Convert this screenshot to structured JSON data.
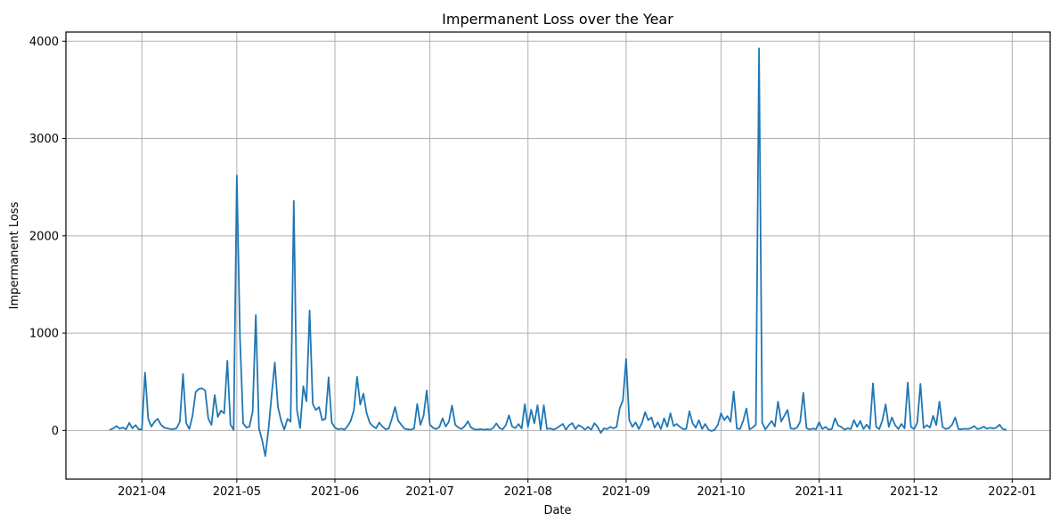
{
  "figure": {
    "title": "Impermanent Loss over the Year",
    "xlabel": "Date",
    "ylabel": "Impermanent Loss",
    "colors": {
      "line": "#1f77b4",
      "grid": "#b0b0b0",
      "spine": "#000000",
      "background": "#ffffff"
    }
  },
  "chart_data": {
    "type": "line",
    "title": "Impermanent Loss over the Year",
    "xlabel": "Date",
    "ylabel": "Impermanent Loss",
    "legend": null,
    "grid": true,
    "series_name": "Impermanent Loss",
    "freq": "daily",
    "start_date": "2021-03-22",
    "end_date": "2021-12-30",
    "x_tick_labels": [
      "2021-04",
      "2021-05",
      "2021-06",
      "2021-07",
      "2021-08",
      "2021-09",
      "2021-10",
      "2021-11",
      "2021-12",
      "2022-01"
    ],
    "x_tick_days": [
      24,
      54,
      85,
      115,
      146,
      177,
      207,
      238,
      268,
      299
    ],
    "xlim_days": 311,
    "data_start_day": 14,
    "y_ticks": [
      0,
      1000,
      2000,
      3000,
      4000
    ],
    "ylim": [
      -500,
      4094
    ],
    "values": [
      8,
      22,
      45,
      18,
      30,
      12,
      78,
      22,
      55,
      12,
      10,
      595,
      120,
      40,
      90,
      120,
      60,
      30,
      22,
      15,
      12,
      25,
      90,
      580,
      75,
      15,
      150,
      396,
      425,
      433,
      410,
      120,
      57,
      365,
      140,
      204,
      175,
      717,
      60,
      5,
      2620,
      950,
      75,
      30,
      40,
      195,
      1187,
      20,
      -100,
      -263,
      10,
      363,
      698,
      241,
      100,
      10,
      119,
      90,
      2361,
      210,
      25,
      455,
      300,
      1233,
      272,
      210,
      240,
      105,
      120,
      546,
      80,
      30,
      12,
      18,
      8,
      45,
      100,
      210,
      552,
      265,
      378,
      180,
      80,
      43,
      22,
      82,
      40,
      12,
      20,
      120,
      241,
      100,
      58,
      18,
      12,
      8,
      20,
      272,
      58,
      150,
      409,
      60,
      27,
      15,
      35,
      125,
      40,
      90,
      256,
      60,
      30,
      15,
      45,
      94,
      30,
      12,
      8,
      15,
      8,
      12,
      8,
      25,
      73,
      25,
      12,
      55,
      156,
      40,
      25,
      66,
      20,
      270,
      37,
      213,
      75,
      259,
      8,
      259,
      15,
      22,
      8,
      22,
      45,
      67,
      8,
      55,
      75,
      15,
      55,
      37,
      8,
      37,
      8,
      75,
      37,
      -25,
      22,
      15,
      37,
      22,
      37,
      230,
      310,
      735,
      106,
      37,
      84,
      15,
      75,
      189,
      106,
      134,
      28,
      84,
      15,
      125,
      37,
      177,
      46,
      67,
      37,
      15,
      15,
      198,
      75,
      28,
      106,
      15,
      67,
      8,
      -5,
      8,
      60,
      177,
      106,
      148,
      90,
      400,
      20,
      15,
      100,
      226,
      10,
      30,
      60,
      3927,
      80,
      10,
      56,
      97,
      40,
      296,
      92,
      150,
      211,
      22,
      15,
      30,
      90,
      387,
      25,
      10,
      20,
      12,
      84,
      15,
      37,
      8,
      15,
      126,
      50,
      37,
      8,
      22,
      15,
      106,
      37,
      98,
      15,
      60,
      15,
      485,
      37,
      15,
      106,
      268,
      37,
      134,
      55,
      15,
      67,
      22,
      492,
      37,
      15,
      80,
      479,
      25,
      55,
      30,
      150,
      55,
      296,
      35,
      15,
      25,
      60,
      134,
      15,
      12,
      18,
      15,
      25,
      46,
      15,
      22,
      40,
      18,
      28,
      20,
      30,
      60,
      15,
      8
    ]
  }
}
